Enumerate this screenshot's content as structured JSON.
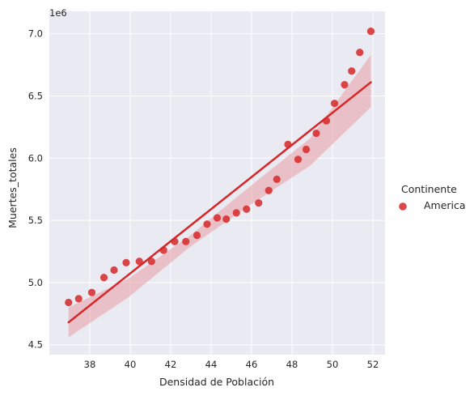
{
  "chart_data": {
    "type": "scatter",
    "xlabel": "Densidad de Población",
    "ylabel": "Muertes_totales",
    "offset_label": "1e6",
    "xlim": [
      36.0,
      52.6
    ],
    "ylim": [
      4.42,
      7.18
    ],
    "xticks": [
      38,
      40,
      42,
      44,
      46,
      48,
      50,
      52
    ],
    "yticks": [
      4.5,
      5.0,
      5.5,
      6.0,
      6.5,
      7.0
    ],
    "xtick_labels": [
      "38",
      "40",
      "42",
      "44",
      "46",
      "48",
      "50",
      "52"
    ],
    "ytick_labels": [
      "4.5",
      "5.0",
      "5.5",
      "6.0",
      "6.5",
      "7.0"
    ],
    "grid": true,
    "legend": {
      "title": "Continente",
      "placement": "right",
      "entries": [
        "America"
      ]
    },
    "colors": {
      "background": "#eaeaf2",
      "grid": "#ffffff",
      "points": "#d62728",
      "line": "#d62728",
      "band": "#e8a3aa"
    },
    "series": [
      {
        "name": "America",
        "x": [
          36.95,
          37.45,
          38.1,
          38.7,
          39.2,
          39.8,
          40.45,
          41.05,
          41.65,
          42.2,
          42.75,
          43.3,
          43.8,
          44.3,
          44.75,
          45.25,
          45.75,
          46.35,
          46.85,
          47.25,
          47.8,
          48.3,
          48.7,
          49.2,
          49.7,
          50.1,
          50.6,
          50.95,
          51.35,
          51.9
        ],
        "y": [
          4.84,
          4.87,
          4.92,
          5.04,
          5.1,
          5.16,
          5.17,
          5.17,
          5.26,
          5.33,
          5.33,
          5.38,
          5.47,
          5.52,
          5.51,
          5.56,
          5.59,
          5.64,
          5.74,
          5.83,
          6.11,
          5.99,
          6.07,
          6.2,
          6.3,
          6.44,
          6.59,
          6.7,
          6.85,
          7.02
        ]
      }
    ],
    "regression": {
      "x_range": [
        36.95,
        51.9
      ],
      "y_range": [
        4.68,
        6.61
      ],
      "band_lower": [
        4.56,
        4.88,
        5.28,
        5.62,
        5.94,
        6.41
      ],
      "band_upper": [
        4.8,
        5.03,
        5.37,
        5.77,
        6.16,
        6.83
      ],
      "band_x": [
        36.95,
        39.9,
        42.9,
        45.9,
        48.9,
        51.9
      ]
    }
  }
}
